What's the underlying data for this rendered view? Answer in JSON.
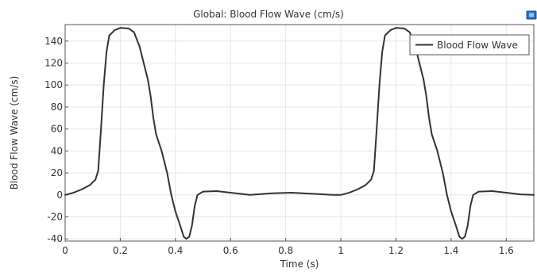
{
  "chart_data": {
    "type": "line",
    "title": "Global: Blood Flow Wave (cm/s)",
    "xlabel": "Time (s)",
    "ylabel": "Blood Flow Wave (cm/s)",
    "xlim": [
      0,
      1.7
    ],
    "ylim": [
      -42,
      155
    ],
    "xticks": [
      0,
      0.2,
      0.4,
      0.6,
      0.8,
      1,
      1.2,
      1.4,
      1.6
    ],
    "yticks": [
      -40,
      -20,
      0,
      20,
      40,
      60,
      80,
      100,
      120,
      140
    ],
    "grid": true,
    "legend_position": "top-right",
    "series": [
      {
        "name": "Blood Flow Wave",
        "color": "#333333",
        "points": [
          [
            0.0,
            0
          ],
          [
            0.03,
            2
          ],
          [
            0.06,
            5
          ],
          [
            0.09,
            9
          ],
          [
            0.11,
            14
          ],
          [
            0.12,
            22
          ],
          [
            0.13,
            60
          ],
          [
            0.14,
            100
          ],
          [
            0.15,
            130
          ],
          [
            0.16,
            145
          ],
          [
            0.18,
            150
          ],
          [
            0.2,
            152
          ],
          [
            0.23,
            151.5
          ],
          [
            0.25,
            148
          ],
          [
            0.27,
            135
          ],
          [
            0.28,
            125
          ],
          [
            0.3,
            105
          ],
          [
            0.31,
            90
          ],
          [
            0.32,
            70
          ],
          [
            0.33,
            55
          ],
          [
            0.35,
            40
          ],
          [
            0.37,
            20
          ],
          [
            0.385,
            0
          ],
          [
            0.4,
            -15
          ],
          [
            0.42,
            -30
          ],
          [
            0.43,
            -38
          ],
          [
            0.44,
            -40
          ],
          [
            0.45,
            -38
          ],
          [
            0.46,
            -28
          ],
          [
            0.47,
            -10
          ],
          [
            0.48,
            0
          ],
          [
            0.5,
            3
          ],
          [
            0.55,
            3.5
          ],
          [
            0.6,
            2
          ],
          [
            0.67,
            0
          ],
          [
            0.75,
            1.5
          ],
          [
            0.82,
            2
          ],
          [
            0.9,
            1
          ],
          [
            0.97,
            0
          ],
          [
            1.0,
            0
          ],
          [
            1.03,
            2
          ],
          [
            1.06,
            5
          ],
          [
            1.09,
            9
          ],
          [
            1.11,
            14
          ],
          [
            1.12,
            22
          ],
          [
            1.13,
            60
          ],
          [
            1.14,
            100
          ],
          [
            1.15,
            130
          ],
          [
            1.16,
            145
          ],
          [
            1.18,
            150
          ],
          [
            1.2,
            152
          ],
          [
            1.23,
            151.5
          ],
          [
            1.25,
            148
          ],
          [
            1.27,
            135
          ],
          [
            1.28,
            125
          ],
          [
            1.3,
            105
          ],
          [
            1.31,
            90
          ],
          [
            1.32,
            70
          ],
          [
            1.33,
            55
          ],
          [
            1.35,
            40
          ],
          [
            1.37,
            20
          ],
          [
            1.385,
            0
          ],
          [
            1.4,
            -15
          ],
          [
            1.42,
            -30
          ],
          [
            1.43,
            -38
          ],
          [
            1.44,
            -40
          ],
          [
            1.45,
            -38
          ],
          [
            1.46,
            -28
          ],
          [
            1.47,
            -10
          ],
          [
            1.48,
            0
          ],
          [
            1.5,
            3
          ],
          [
            1.55,
            3.5
          ],
          [
            1.6,
            2
          ],
          [
            1.65,
            0.5
          ],
          [
            1.7,
            0
          ]
        ]
      }
    ]
  }
}
